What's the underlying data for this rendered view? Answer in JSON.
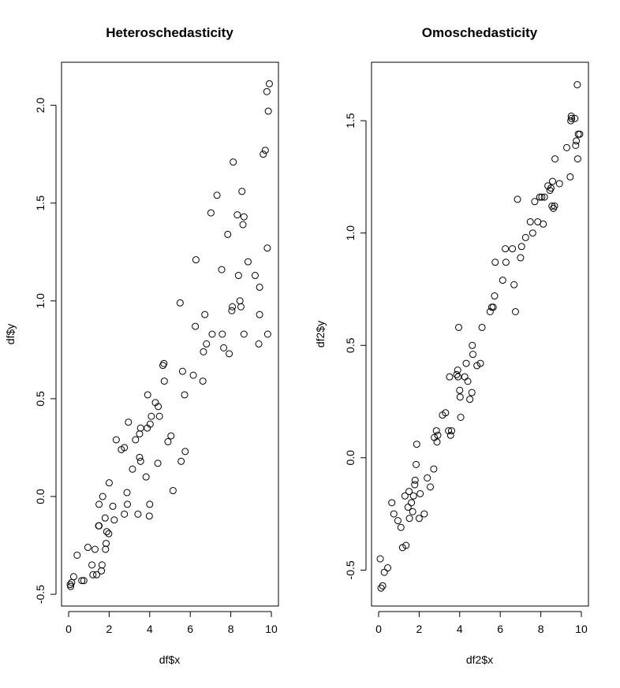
{
  "chart_data": [
    {
      "type": "scatter",
      "title": "Heteroschedasticity",
      "xlabel": "df$x",
      "ylabel": "df$y",
      "xlim": [
        -0.35,
        10.35
      ],
      "ylim": [
        -0.56,
        2.22
      ],
      "xticks": [
        0,
        2,
        4,
        6,
        8,
        10
      ],
      "yticks": [
        -0.5,
        0.0,
        0.5,
        1.0,
        1.5,
        2.0
      ],
      "ytick_labels": [
        "-0.5",
        "0.0",
        "0.5",
        "1.0",
        "1.5",
        "2.0"
      ],
      "grid": false,
      "marker": "open-circle",
      "points": [
        [
          0.08,
          -0.45
        ],
        [
          0.1,
          -0.46
        ],
        [
          0.15,
          -0.44
        ],
        [
          0.25,
          -0.41
        ],
        [
          0.42,
          -0.3
        ],
        [
          0.65,
          -0.43
        ],
        [
          0.75,
          -0.43
        ],
        [
          0.95,
          -0.26
        ],
        [
          1.15,
          -0.35
        ],
        [
          1.2,
          -0.4
        ],
        [
          1.3,
          -0.27
        ],
        [
          1.38,
          -0.4
        ],
        [
          1.48,
          -0.15
        ],
        [
          1.5,
          -0.15
        ],
        [
          1.5,
          -0.04
        ],
        [
          1.62,
          -0.38
        ],
        [
          1.65,
          -0.35
        ],
        [
          1.68,
          0.0
        ],
        [
          1.8,
          -0.11
        ],
        [
          1.82,
          -0.27
        ],
        [
          1.85,
          -0.24
        ],
        [
          1.88,
          -0.18
        ],
        [
          1.98,
          -0.19
        ],
        [
          2.0,
          0.07
        ],
        [
          2.18,
          -0.05
        ],
        [
          2.25,
          -0.12
        ],
        [
          2.35,
          0.29
        ],
        [
          2.6,
          0.24
        ],
        [
          2.75,
          0.25
        ],
        [
          2.75,
          -0.09
        ],
        [
          2.88,
          0.02
        ],
        [
          2.9,
          -0.04
        ],
        [
          2.95,
          0.38
        ],
        [
          3.15,
          0.14
        ],
        [
          3.3,
          0.29
        ],
        [
          3.42,
          -0.09
        ],
        [
          3.5,
          0.2
        ],
        [
          3.5,
          0.32
        ],
        [
          3.55,
          0.35
        ],
        [
          3.55,
          0.18
        ],
        [
          3.82,
          0.1
        ],
        [
          3.88,
          0.35
        ],
        [
          3.9,
          0.52
        ],
        [
          3.98,
          -0.1
        ],
        [
          4.0,
          -0.04
        ],
        [
          4.02,
          0.37
        ],
        [
          4.08,
          0.41
        ],
        [
          4.28,
          0.48
        ],
        [
          4.4,
          0.17
        ],
        [
          4.42,
          0.46
        ],
        [
          4.48,
          0.41
        ],
        [
          4.65,
          0.67
        ],
        [
          4.7,
          0.68
        ],
        [
          4.72,
          0.59
        ],
        [
          4.9,
          0.28
        ],
        [
          5.05,
          0.31
        ],
        [
          5.15,
          0.03
        ],
        [
          5.5,
          0.99
        ],
        [
          5.55,
          0.18
        ],
        [
          5.62,
          0.64
        ],
        [
          5.72,
          0.52
        ],
        [
          5.75,
          0.23
        ],
        [
          6.15,
          0.62
        ],
        [
          6.25,
          0.87
        ],
        [
          6.28,
          1.21
        ],
        [
          6.62,
          0.59
        ],
        [
          6.65,
          0.74
        ],
        [
          6.72,
          0.93
        ],
        [
          6.8,
          0.78
        ],
        [
          7.02,
          1.45
        ],
        [
          7.08,
          0.83
        ],
        [
          7.32,
          1.54
        ],
        [
          7.55,
          1.16
        ],
        [
          7.58,
          0.83
        ],
        [
          7.65,
          0.76
        ],
        [
          7.85,
          1.34
        ],
        [
          7.92,
          0.73
        ],
        [
          8.05,
          0.95
        ],
        [
          8.08,
          0.97
        ],
        [
          8.12,
          1.71
        ],
        [
          8.32,
          1.44
        ],
        [
          8.38,
          1.13
        ],
        [
          8.45,
          1.0
        ],
        [
          8.5,
          0.97
        ],
        [
          8.55,
          1.56
        ],
        [
          8.6,
          1.39
        ],
        [
          8.65,
          1.43
        ],
        [
          8.65,
          0.83
        ],
        [
          8.85,
          1.2
        ],
        [
          9.2,
          1.13
        ],
        [
          9.38,
          0.78
        ],
        [
          9.42,
          0.93
        ],
        [
          9.42,
          1.07
        ],
        [
          9.6,
          1.75
        ],
        [
          9.7,
          1.77
        ],
        [
          9.78,
          2.07
        ],
        [
          9.8,
          1.27
        ],
        [
          9.82,
          0.83
        ],
        [
          9.85,
          1.97
        ],
        [
          9.9,
          2.11
        ]
      ]
    },
    {
      "type": "scatter",
      "title": "Omoschedasticity",
      "xlabel": "df2$x",
      "ylabel": "df2$y",
      "xlim": [
        -0.35,
        10.35
      ],
      "ylim": [
        -0.66,
        1.76
      ],
      "xticks": [
        0,
        2,
        4,
        6,
        8,
        10
      ],
      "yticks": [
        -0.5,
        0.0,
        0.5,
        1.0,
        1.5
      ],
      "ytick_labels": [
        "-0.5",
        "0.0",
        "0.5",
        "1.0",
        "1.5"
      ],
      "grid": false,
      "marker": "open-circle",
      "points": [
        [
          0.08,
          -0.45
        ],
        [
          0.12,
          -0.58
        ],
        [
          0.2,
          -0.57
        ],
        [
          0.28,
          -0.51
        ],
        [
          0.45,
          -0.49
        ],
        [
          0.65,
          -0.2
        ],
        [
          0.75,
          -0.25
        ],
        [
          0.95,
          -0.28
        ],
        [
          1.1,
          -0.31
        ],
        [
          1.18,
          -0.4
        ],
        [
          1.3,
          -0.17
        ],
        [
          1.35,
          -0.39
        ],
        [
          1.45,
          -0.22
        ],
        [
          1.5,
          -0.15
        ],
        [
          1.52,
          -0.27
        ],
        [
          1.62,
          -0.2
        ],
        [
          1.68,
          -0.24
        ],
        [
          1.72,
          -0.17
        ],
        [
          1.78,
          -0.12
        ],
        [
          1.8,
          -0.1
        ],
        [
          1.85,
          -0.03
        ],
        [
          1.88,
          0.06
        ],
        [
          2.0,
          -0.27
        ],
        [
          2.05,
          -0.16
        ],
        [
          2.25,
          -0.25
        ],
        [
          2.4,
          -0.09
        ],
        [
          2.55,
          -0.13
        ],
        [
          2.72,
          -0.05
        ],
        [
          2.75,
          0.09
        ],
        [
          2.85,
          0.12
        ],
        [
          2.88,
          0.07
        ],
        [
          2.92,
          0.1
        ],
        [
          3.15,
          0.19
        ],
        [
          3.3,
          0.2
        ],
        [
          3.45,
          0.12
        ],
        [
          3.5,
          0.36
        ],
        [
          3.55,
          0.1
        ],
        [
          3.6,
          0.12
        ],
        [
          3.85,
          0.37
        ],
        [
          3.9,
          0.39
        ],
        [
          3.92,
          0.36
        ],
        [
          3.95,
          0.58
        ],
        [
          4.0,
          0.3
        ],
        [
          4.02,
          0.27
        ],
        [
          4.05,
          0.18
        ],
        [
          4.25,
          0.36
        ],
        [
          4.32,
          0.42
        ],
        [
          4.4,
          0.34
        ],
        [
          4.5,
          0.26
        ],
        [
          4.6,
          0.29
        ],
        [
          4.62,
          0.5
        ],
        [
          4.65,
          0.46
        ],
        [
          4.85,
          0.41
        ],
        [
          5.02,
          0.42
        ],
        [
          5.1,
          0.58
        ],
        [
          5.5,
          0.65
        ],
        [
          5.58,
          0.67
        ],
        [
          5.65,
          0.67
        ],
        [
          5.72,
          0.72
        ],
        [
          5.75,
          0.87
        ],
        [
          6.12,
          0.79
        ],
        [
          6.25,
          0.93
        ],
        [
          6.28,
          0.87
        ],
        [
          6.6,
          0.93
        ],
        [
          6.68,
          0.77
        ],
        [
          6.75,
          0.65
        ],
        [
          6.85,
          1.15
        ],
        [
          7.0,
          0.89
        ],
        [
          7.05,
          0.94
        ],
        [
          7.25,
          0.98
        ],
        [
          7.48,
          1.05
        ],
        [
          7.6,
          1.0
        ],
        [
          7.7,
          1.14
        ],
        [
          7.85,
          1.05
        ],
        [
          7.95,
          1.16
        ],
        [
          8.05,
          1.16
        ],
        [
          8.12,
          1.04
        ],
        [
          8.18,
          1.16
        ],
        [
          8.35,
          1.21
        ],
        [
          8.45,
          1.19
        ],
        [
          8.5,
          1.2
        ],
        [
          8.55,
          1.12
        ],
        [
          8.58,
          1.23
        ],
        [
          8.62,
          1.11
        ],
        [
          8.68,
          1.12
        ],
        [
          8.7,
          1.33
        ],
        [
          8.92,
          1.22
        ],
        [
          9.28,
          1.38
        ],
        [
          9.45,
          1.25
        ],
        [
          9.48,
          1.5
        ],
        [
          9.5,
          1.52
        ],
        [
          9.52,
          1.51
        ],
        [
          9.68,
          1.51
        ],
        [
          9.72,
          1.39
        ],
        [
          9.75,
          1.41
        ],
        [
          9.8,
          1.66
        ],
        [
          9.82,
          1.33
        ],
        [
          9.85,
          1.44
        ],
        [
          9.92,
          1.44
        ]
      ]
    }
  ]
}
